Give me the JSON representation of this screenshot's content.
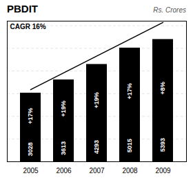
{
  "chart_data": {
    "type": "bar",
    "title": "PBDIT",
    "subtitle": "Rs. Crores",
    "categories": [
      "2005",
      "2006",
      "2007",
      "2008",
      "2009"
    ],
    "values": [
      3028,
      3613,
      4293,
      5015,
      5393
    ],
    "growth_labels": [
      "+17%",
      "+19%",
      "+19%",
      "+17%",
      "+8%"
    ],
    "annotations": [
      "CAGR 16%"
    ],
    "trend_line": {
      "x": [
        "2005",
        "2009"
      ],
      "values": [
        3178,
        6143
      ]
    },
    "ylim": [
      0,
      6200
    ],
    "yticks": [
      1000,
      2000,
      3000,
      4000,
      5000,
      6000
    ],
    "grid": true,
    "data_labels": true,
    "tick_labels": "x"
  }
}
